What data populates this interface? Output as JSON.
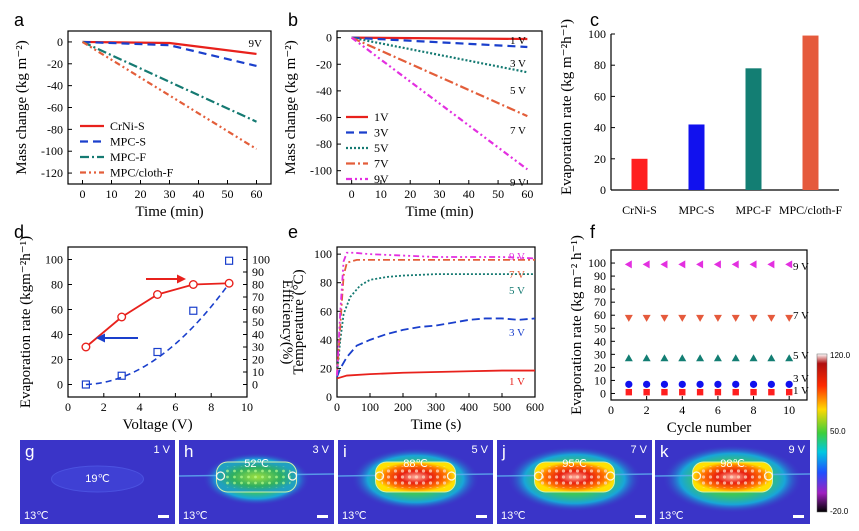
{
  "panels": {
    "a": {
      "label": "a",
      "type": "line",
      "xlabel": "Time (min)",
      "ylabel": "Mass change (kg m⁻²)",
      "xlim": [
        -5,
        65
      ],
      "ylim": [
        -130,
        10
      ],
      "xticks": [
        0,
        10,
        20,
        30,
        40,
        50,
        60
      ],
      "yticks": [
        0,
        -20,
        -40,
        -60,
        -80,
        -100,
        -120
      ],
      "annotation": "9V",
      "series": [
        {
          "name": "CrNi-S",
          "color": "#e8211c",
          "dash": "",
          "x": [
            0,
            30,
            60
          ],
          "y": [
            0,
            -1,
            -11
          ]
        },
        {
          "name": "MPC-S",
          "color": "#1a3fcc",
          "dash": "8,5",
          "x": [
            0,
            30,
            60
          ],
          "y": [
            0,
            -3,
            -22
          ]
        },
        {
          "name": "MPC-F",
          "color": "#157a72",
          "dash": "9,3,2,3",
          "x": [
            0,
            60
          ],
          "y": [
            0,
            -73
          ]
        },
        {
          "name": "MPC/cloth-F",
          "color": "#e35e3a",
          "dash": "6,3,2,3,2,3",
          "x": [
            0,
            60
          ],
          "y": [
            0,
            -98
          ]
        }
      ]
    },
    "b": {
      "label": "b",
      "type": "line",
      "xlabel": "Time (min)",
      "ylabel": "Mass change (kg m⁻²)",
      "xlim": [
        -5,
        65
      ],
      "ylim": [
        -110,
        5
      ],
      "xticks": [
        0,
        10,
        20,
        30,
        40,
        50,
        60
      ],
      "yticks": [
        0,
        -20,
        -40,
        -60,
        -80,
        -100
      ],
      "series": [
        {
          "name": "1V",
          "end_label": "1 V",
          "color": "#e8211c",
          "dash": "",
          "x": [
            0,
            60
          ],
          "y": [
            0,
            -1
          ]
        },
        {
          "name": "3V",
          "end_label": "3 V",
          "color": "#1a3fcc",
          "dash": "8,5",
          "x": [
            0,
            60
          ],
          "y": [
            0,
            -7
          ]
        },
        {
          "name": "5V",
          "end_label": "5 V",
          "color": "#157a72",
          "dash": "2,2",
          "x": [
            0,
            60
          ],
          "y": [
            0,
            -26
          ]
        },
        {
          "name": "7V",
          "end_label": "7 V",
          "color": "#e35e3a",
          "dash": "9,3,2,3",
          "x": [
            0,
            60
          ],
          "y": [
            0,
            -59
          ]
        },
        {
          "name": "9V",
          "end_label": "9 V",
          "color": "#e32fe0",
          "dash": "6,3,2,3,2,3",
          "x": [
            0,
            60
          ],
          "y": [
            0,
            -99
          ]
        }
      ]
    },
    "c": {
      "label": "c",
      "type": "bar",
      "ylabel": "Evaporation rate (kg m⁻²h⁻¹)",
      "ylim": [
        0,
        100
      ],
      "yticks": [
        0,
        20,
        40,
        60,
        80,
        100
      ],
      "categories": [
        "CrNi-S",
        "MPC-S",
        "MPC-F",
        "MPC/cloth-F"
      ],
      "values": [
        20,
        42,
        78,
        99
      ],
      "colors": [
        "#ff1f1f",
        "#1111ee",
        "#137e73",
        "#e55a3c"
      ]
    },
    "d": {
      "label": "d",
      "type": "line",
      "xlabel": "Voltage (V)",
      "ylabel": "Evaporation rate (kgm⁻²h⁻¹)",
      "y2label": "Efficiency(%)",
      "xlim": [
        0,
        10
      ],
      "ylim": [
        -10,
        110
      ],
      "y2lim": [
        -10,
        110
      ],
      "xticks": [
        0,
        2,
        4,
        6,
        8,
        10
      ],
      "yticks": [
        0,
        20,
        40,
        60,
        80,
        100
      ],
      "y2ticks": [
        0,
        10,
        20,
        30,
        40,
        50,
        60,
        70,
        80,
        90,
        100
      ],
      "series": [
        {
          "name": "Evaporation rate",
          "color": "#1a3fcc",
          "x": [
            1,
            3,
            5,
            7,
            9
          ],
          "y": [
            0,
            7,
            26,
            59,
            99
          ]
        },
        {
          "name": "Efficiency",
          "color": "#e8211c",
          "axis": "right",
          "x": [
            1,
            3,
            5,
            7,
            9
          ],
          "y": [
            30,
            54,
            72,
            80,
            81
          ]
        }
      ]
    },
    "e": {
      "label": "e",
      "type": "line",
      "xlabel": "Time (s)",
      "ylabel": "Temperature (°C)",
      "xlim": [
        0,
        600
      ],
      "ylim": [
        0,
        105
      ],
      "xticks": [
        0,
        100,
        200,
        300,
        400,
        500,
        600
      ],
      "yticks": [
        0,
        20,
        40,
        60,
        80,
        100
      ],
      "series": [
        {
          "name": "1 V",
          "color": "#e8211c",
          "dash": "",
          "x": [
            0,
            30,
            100,
            200,
            300,
            400,
            500,
            600
          ],
          "y": [
            13,
            15,
            16,
            17,
            17.5,
            18,
            18.5,
            18.5
          ]
        },
        {
          "name": "3 V",
          "color": "#1a3fcc",
          "dash": "8,4",
          "x": [
            0,
            10,
            30,
            60,
            100,
            150,
            200,
            250,
            300,
            350,
            400,
            450,
            500,
            550,
            600
          ],
          "y": [
            14,
            20,
            28,
            36,
            40,
            44,
            47,
            49,
            50,
            52,
            54,
            55,
            55,
            54,
            55
          ]
        },
        {
          "name": "5 V",
          "color": "#157a72",
          "dash": "2,2",
          "x": [
            0,
            10,
            20,
            40,
            70,
            100,
            150,
            200,
            300,
            400,
            500,
            600
          ],
          "y": [
            15,
            40,
            58,
            70,
            78,
            82,
            84,
            85,
            86,
            86,
            86,
            86
          ]
        },
        {
          "name": "7 V",
          "color": "#e35e3a",
          "dash": "7,3,2,3",
          "x": [
            0,
            10,
            20,
            30,
            60,
            100,
            200,
            300,
            400,
            500,
            600
          ],
          "y": [
            15,
            50,
            85,
            94,
            96,
            96,
            96,
            96,
            96,
            96,
            96
          ]
        },
        {
          "name": "9 V",
          "color": "#e32fe0",
          "dash": "6,3,2,3,2,3",
          "x": [
            0,
            10,
            20,
            30,
            50,
            100,
            200,
            300,
            400,
            500,
            600
          ],
          "y": [
            15,
            60,
            95,
            101,
            101,
            100,
            99,
            98,
            98,
            98,
            97
          ]
        }
      ]
    },
    "f": {
      "label": "f",
      "type": "scatter",
      "xlabel": "Cycle number",
      "ylabel": "Evaporation rate (kg m⁻² h⁻¹)",
      "xlim": [
        0,
        11
      ],
      "ylim": [
        -5,
        110
      ],
      "xticks": [
        0,
        2,
        4,
        6,
        8,
        10
      ],
      "yticks": [
        0,
        10,
        20,
        30,
        40,
        50,
        60,
        70,
        80,
        90,
        100
      ],
      "x": [
        1,
        2,
        3,
        4,
        5,
        6,
        7,
        8,
        9,
        10
      ],
      "series": [
        {
          "name": "1 V",
          "color": "#ff1f1f",
          "marker": "square",
          "y": 1
        },
        {
          "name": "3 V",
          "color": "#1111ee",
          "marker": "circle",
          "y": 7
        },
        {
          "name": "5 V",
          "color": "#137e73",
          "marker": "triangle-up",
          "y": 27
        },
        {
          "name": "7 V",
          "color": "#e55a3c",
          "marker": "triangle-down",
          "y": 58
        },
        {
          "name": "9 V",
          "color": "#e32fe0",
          "marker": "triangle-left",
          "y": 99
        }
      ]
    }
  },
  "thermal": {
    "images": [
      {
        "label": "g",
        "voltage": "1 V",
        "center_temp": "19℃",
        "ambient": "13℃",
        "level": 0.05
      },
      {
        "label": "h",
        "voltage": "3 V",
        "center_temp": "52℃",
        "ambient": "13℃",
        "level": 0.45
      },
      {
        "label": "i",
        "voltage": "5 V",
        "center_temp": "88℃",
        "ambient": "13℃",
        "level": 0.8
      },
      {
        "label": "j",
        "voltage": "7 V",
        "center_temp": "95℃",
        "ambient": "13℃",
        "level": 0.9
      },
      {
        "label": "k",
        "voltage": "9 V",
        "center_temp": "98℃",
        "ambient": "13℃",
        "level": 1.0
      }
    ],
    "colorbar": {
      "max": "120.0",
      "mid": "50.0",
      "min": "-20.0"
    }
  }
}
